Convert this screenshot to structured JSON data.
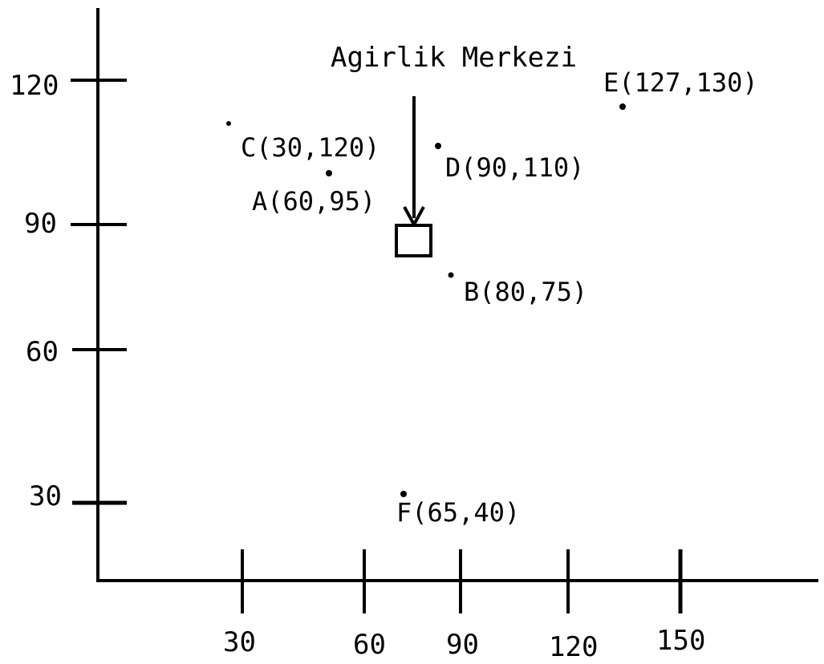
{
  "title": "Agirlik Merkezi",
  "x_ticks": [
    "30",
    "60",
    "90",
    "120",
    "150"
  ],
  "y_ticks": [
    "30",
    "60",
    "90",
    "120"
  ],
  "points": [
    {
      "id": "C",
      "label": "C(30,120)",
      "x": 30,
      "y": 120
    },
    {
      "id": "D",
      "label": "D(90,110)",
      "x": 90,
      "y": 110
    },
    {
      "id": "A",
      "label": "A(60,95)",
      "x": 60,
      "y": 95
    },
    {
      "id": "B",
      "label": "B(80,75)",
      "x": 80,
      "y": 75
    },
    {
      "id": "E",
      "label": "E(127,130)",
      "x": 127,
      "y": 130
    },
    {
      "id": "F",
      "label": "F(65,40)",
      "x": 65,
      "y": 40
    }
  ],
  "centroid_marker": "square"
}
